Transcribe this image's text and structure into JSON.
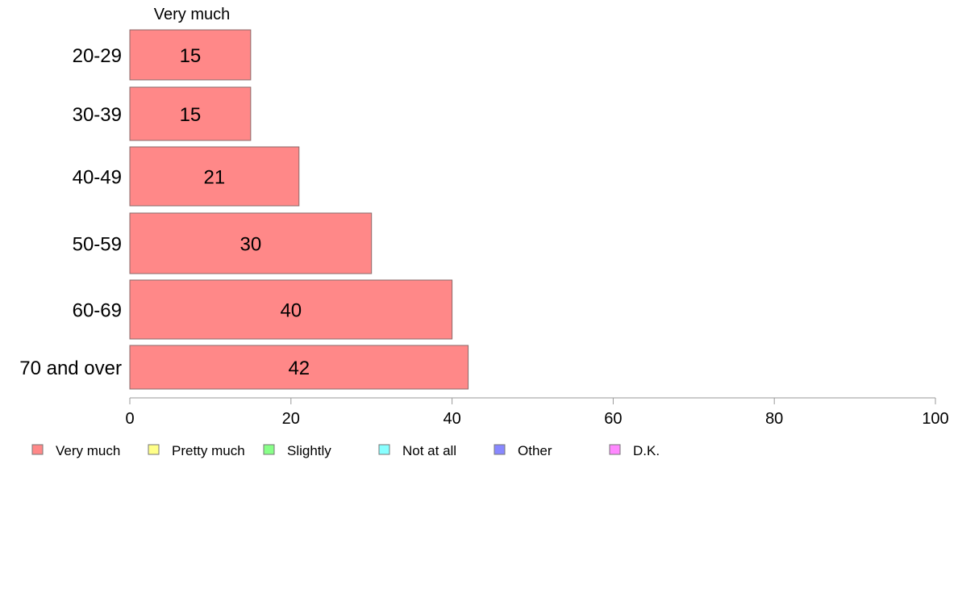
{
  "chart_data": {
    "type": "bar",
    "orientation": "horizontal",
    "column_title": "Very much",
    "categories": [
      "20-29",
      "30-39",
      "40-49",
      "50-59",
      "60-69",
      "70 and over"
    ],
    "series": [
      {
        "name": "Very much",
        "values": [
          15,
          15,
          21,
          30,
          40,
          42
        ]
      }
    ],
    "value_labels": [
      "15",
      "15",
      "21",
      "30",
      "40",
      "42"
    ],
    "xlim": [
      0,
      100
    ],
    "x_ticks": [
      0,
      20,
      40,
      60,
      80,
      100
    ],
    "grid": false,
    "legend": {
      "position": "bottom",
      "items": [
        {
          "label": "Very much",
          "color": "#ff8888"
        },
        {
          "label": "Pretty much",
          "color": "#ffff88"
        },
        {
          "label": "Slightly",
          "color": "#88ff88"
        },
        {
          "label": "Not at all",
          "color": "#88ffff"
        },
        {
          "label": "Other",
          "color": "#8888ff"
        },
        {
          "label": "D.K.",
          "color": "#ff88ff"
        }
      ]
    },
    "bar_color": "#ff8888",
    "bar_border_color": "#8a6a6a",
    "axis_color": "#999999"
  }
}
